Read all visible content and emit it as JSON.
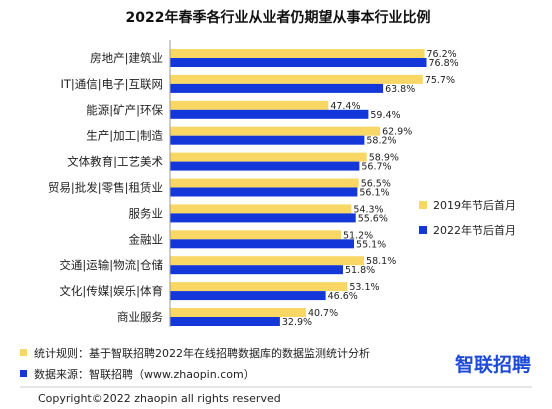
{
  "chart_data": {
    "type": "bar",
    "orientation": "horizontal",
    "title": "2022年春季各行业从业者仍期望从事本行业比例",
    "categories": [
      "房地产|建筑业",
      "IT|通信|电子|互联网",
      "能源|矿产|环保",
      "生产|加工|制造",
      "文体教育|工艺美术",
      "贸易|批发|零售|租赁业",
      "服务业",
      "金融业",
      "交通|运输|物流|仓储",
      "文化|传媒|娱乐|体育",
      "商业服务"
    ],
    "series": [
      {
        "name": "2019年节后首月",
        "color": "#f8d764",
        "values": [
          76.2,
          75.7,
          47.4,
          62.9,
          58.9,
          56.5,
          54.3,
          51.2,
          58.1,
          53.1,
          40.7
        ],
        "labels": [
          "76.2%",
          "75.7%",
          "47.4%",
          "62.9%",
          "58.9%",
          "56.5%",
          "54.3%",
          "51.2%",
          "58.1%",
          "53.1%",
          "40.7%"
        ]
      },
      {
        "name": "2022年节后首月",
        "color": "#1437d9",
        "values": [
          76.8,
          63.8,
          59.4,
          58.2,
          56.7,
          56.1,
          55.6,
          55.1,
          51.8,
          46.6,
          32.9
        ],
        "labels": [
          "76.8%",
          "63.8%",
          "59.4%",
          "58.2%",
          "56.7%",
          "56.1%",
          "55.6%",
          "55.1%",
          "51.8%",
          "46.6%",
          "32.9%"
        ]
      }
    ],
    "xlim": [
      0,
      100
    ],
    "grid": false,
    "legend_position": "right"
  },
  "footnotes": {
    "rule": "统计规则：基于智联招聘2022年在线招聘数据库的数据监测统计分析",
    "source": "数据来源：智联招聘（www.zhaopin.com）",
    "rule_color": "#f8d764",
    "source_color": "#1437d9"
  },
  "logo": {
    "text": "智联招聘",
    "color": "#1e4ad6"
  },
  "copyright": "Copyright©2022 zhaopin all rights reserved"
}
